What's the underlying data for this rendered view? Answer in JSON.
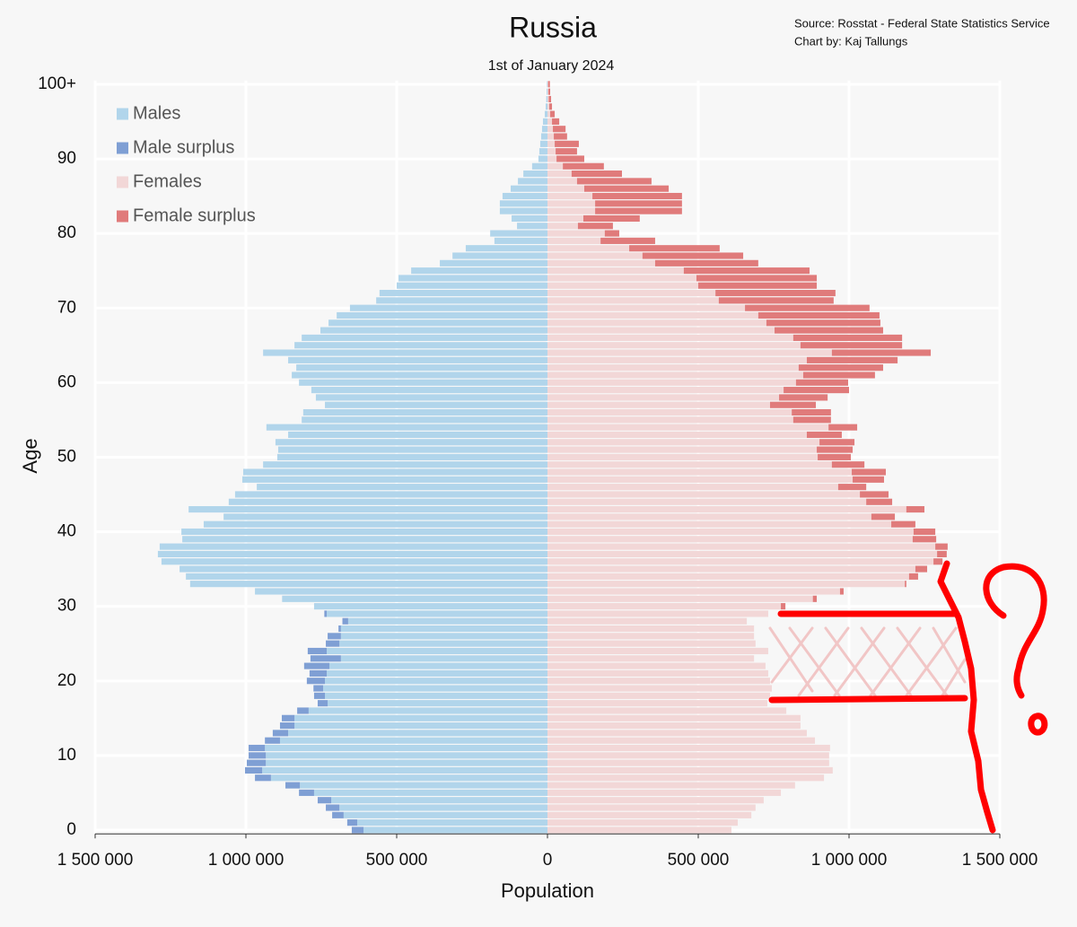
{
  "chart_data": {
    "type": "bar",
    "orientation": "horizontal",
    "title": "Russia",
    "subtitle": "1st of January 2024",
    "source": "Source: Rosstat - Federal State Statistics Service",
    "credit": "Chart by: Kaj Tallungs",
    "x_label": "Population",
    "y_label": "Age",
    "legend": "upper left",
    "grid": true,
    "xlim": [
      -1500000,
      1500000
    ],
    "xticks": [
      {
        "value": -1500000,
        "label": "1 500 000"
      },
      {
        "value": -1000000,
        "label": "1 000 000"
      },
      {
        "value": -500000,
        "label": "500 000"
      },
      0,
      {
        "value": 500000,
        "label": "500 000"
      },
      {
        "value": 1000000,
        "label": "1 000 000"
      },
      {
        "value": 1500000,
        "label": "1 500 000"
      }
    ],
    "ylim": [
      -0.5,
      100.5
    ],
    "yticks": [
      0,
      10,
      20,
      30,
      40,
      50,
      60,
      70,
      80,
      90,
      {
        "value": 100,
        "label": "100+"
      }
    ],
    "y": [
      0,
      1,
      2,
      3,
      4,
      5,
      6,
      7,
      8,
      9,
      10,
      11,
      12,
      13,
      14,
      15,
      16,
      17,
      18,
      19,
      20,
      21,
      22,
      23,
      24,
      25,
      26,
      27,
      28,
      29,
      30,
      31,
      32,
      33,
      34,
      35,
      36,
      37,
      38,
      39,
      40,
      41,
      42,
      43,
      44,
      45,
      46,
      47,
      48,
      49,
      50,
      51,
      52,
      53,
      54,
      55,
      56,
      57,
      58,
      59,
      60,
      61,
      62,
      63,
      64,
      65,
      66,
      67,
      68,
      69,
      70,
      71,
      72,
      73,
      74,
      75,
      76,
      77,
      78,
      79,
      80,
      81,
      82,
      83,
      84,
      85,
      86,
      87,
      88,
      89,
      90,
      91,
      92,
      93,
      94,
      95,
      96,
      97,
      98,
      99,
      100
    ],
    "series": [
      {
        "name": "Males",
        "color": "#b1d5eb",
        "values": [
          -610000,
          -631000,
          -676000,
          -690000,
          -717000,
          -774000,
          -821000,
          -917000,
          -946000,
          -934000,
          -934000,
          -937000,
          -887000,
          -860000,
          -839000,
          -839000,
          -792000,
          -729000,
          -738000,
          -744000,
          -738000,
          -732000,
          -723000,
          -685000,
          -732000,
          -690000,
          -685000,
          -685000,
          -661000,
          -732000,
          -774000,
          -880000,
          -970000,
          -1185000,
          -1199000,
          -1220000,
          -1280000,
          -1292000,
          -1286000,
          -1211000,
          -1214000,
          -1140000,
          -1074000,
          -1190000,
          -1057000,
          -1036000,
          -964000,
          -1012000,
          -1009000,
          -943000,
          -896000,
          -893000,
          -902000,
          -860000,
          -932000,
          -815000,
          -810000,
          -738000,
          -768000,
          -783000,
          -824000,
          -848000,
          -833000,
          -860000,
          -943000,
          -839000,
          -815000,
          -753000,
          -726000,
          -699000,
          -655000,
          -568000,
          -557000,
          -500000,
          -494000,
          -452000,
          -357000,
          -315000,
          -271000,
          -176000,
          -190000,
          -101000,
          -119000,
          -158000,
          -158000,
          -149000,
          -122000,
          -98000,
          -80000,
          -51000,
          -30000,
          -27000,
          -24000,
          -21000,
          -18000,
          -15000,
          -9000,
          -6000,
          -4000,
          -3000,
          -2000
        ]
      },
      {
        "name": "Male surplus",
        "color": "#7f9fd4",
        "values": [
          -39000,
          -33000,
          -38000,
          -45000,
          -45000,
          -50000,
          -48000,
          -53000,
          -57000,
          -63000,
          -57000,
          -54000,
          -50000,
          -51000,
          -48000,
          -42000,
          -38000,
          -33000,
          -36000,
          -32000,
          -60000,
          -57000,
          -84000,
          -101000,
          -63000,
          -45000,
          -44000,
          -8000,
          -19000,
          -8000,
          0,
          0,
          0,
          0,
          0,
          0,
          0,
          0,
          0,
          0,
          0,
          0,
          0,
          0,
          0,
          0,
          0,
          0,
          0,
          0,
          0,
          0,
          0,
          0,
          0,
          0,
          0,
          0,
          0,
          0,
          0,
          0,
          0,
          0,
          0,
          0,
          0,
          0,
          0,
          0,
          0,
          0,
          0,
          0,
          0,
          0,
          0,
          0,
          0,
          0,
          0,
          0,
          0,
          0,
          0,
          0,
          0,
          0,
          0,
          0,
          0,
          0,
          0,
          0,
          0,
          0,
          0,
          0,
          0,
          0,
          0
        ]
      },
      {
        "name": "Females",
        "color": "#f2d7d7",
        "values": [
          610000,
          631000,
          676000,
          690000,
          717000,
          774000,
          821000,
          917000,
          946000,
          934000,
          934000,
          937000,
          887000,
          860000,
          839000,
          839000,
          792000,
          729000,
          738000,
          744000,
          738000,
          732000,
          723000,
          685000,
          732000,
          690000,
          685000,
          685000,
          661000,
          732000,
          774000,
          880000,
          970000,
          1185000,
          1199000,
          1220000,
          1280000,
          1292000,
          1286000,
          1211000,
          1214000,
          1140000,
          1074000,
          1190000,
          1057000,
          1036000,
          964000,
          1012000,
          1009000,
          943000,
          896000,
          893000,
          902000,
          860000,
          932000,
          815000,
          810000,
          738000,
          768000,
          783000,
          824000,
          848000,
          833000,
          860000,
          943000,
          839000,
          815000,
          753000,
          726000,
          699000,
          655000,
          568000,
          557000,
          500000,
          494000,
          452000,
          357000,
          315000,
          271000,
          176000,
          190000,
          101000,
          119000,
          158000,
          158000,
          149000,
          122000,
          98000,
          80000,
          51000,
          30000,
          27000,
          24000,
          21000,
          18000,
          15000,
          9000,
          6000,
          4000,
          3000,
          2000
        ]
      },
      {
        "name": "Female surplus",
        "color": "#e07b7b",
        "values": [
          0,
          0,
          0,
          0,
          0,
          0,
          0,
          0,
          0,
          0,
          0,
          0,
          0,
          0,
          0,
          0,
          0,
          0,
          0,
          0,
          0,
          0,
          0,
          0,
          0,
          0,
          0,
          0,
          0,
          0,
          15000,
          13000,
          12000,
          5000,
          30000,
          39000,
          30000,
          32000,
          41000,
          78000,
          72000,
          80000,
          78000,
          60000,
          86000,
          95000,
          93000,
          104000,
          113000,
          108000,
          110000,
          119000,
          116000,
          116000,
          95000,
          125000,
          130000,
          152000,
          161000,
          217000,
          173000,
          238000,
          280000,
          301000,
          328000,
          337000,
          361000,
          360000,
          378000,
          402000,
          413000,
          381000,
          398000,
          393000,
          399000,
          417000,
          342000,
          334000,
          300000,
          181000,
          48000,
          116000,
          187000,
          288000,
          288000,
          297000,
          280000,
          247000,
          167000,
          136000,
          92000,
          71000,
          80000,
          44000,
          42000,
          24000,
          15000,
          9000,
          8000,
          6000,
          6000
        ]
      }
    ]
  }
}
